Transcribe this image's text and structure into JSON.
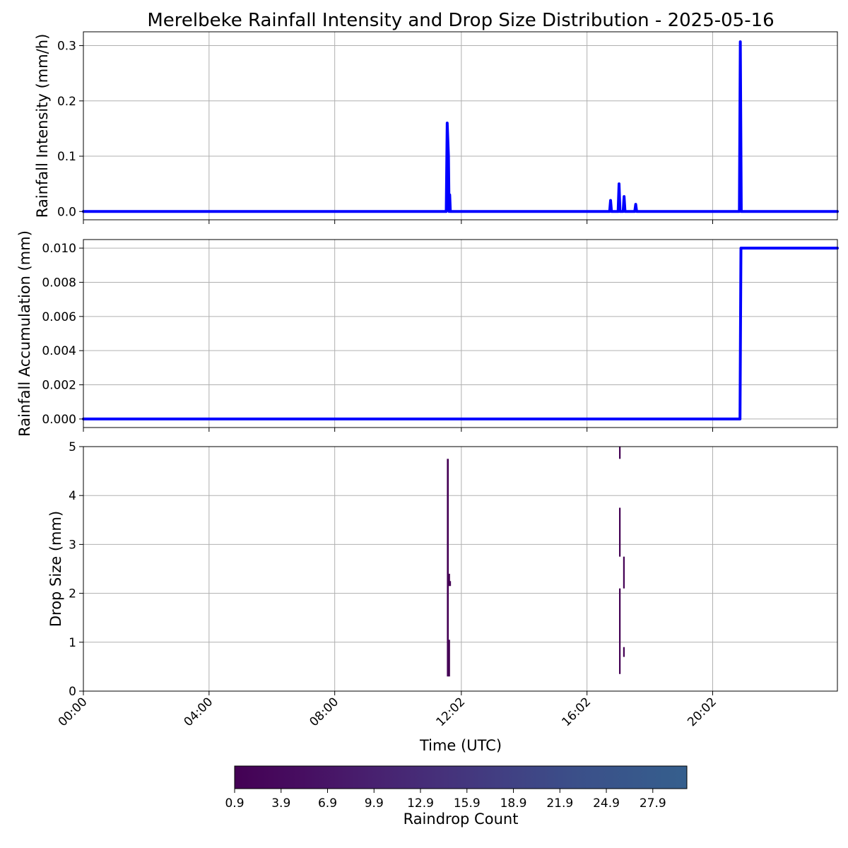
{
  "figure": {
    "title": "Merelbeke Rainfall Intensity and Drop Size Distribution - 2025-05-16",
    "xlabel": "Time (UTC)"
  },
  "colors": {
    "line": "#0000ff",
    "grid": "#b0b0b0",
    "viridis_low": "#440154",
    "viridis_high": "#355f8d"
  },
  "chart_data": [
    {
      "type": "line",
      "name": "intensity",
      "ylabel": "Rainfall Intensity (mm/h)",
      "xlim": [
        0,
        24
      ],
      "ylim": [
        -0.015,
        0.325
      ],
      "yticks": [
        0.0,
        0.1,
        0.2,
        0.3
      ],
      "ytick_labels": [
        "0.0",
        "0.1",
        "0.2",
        "0.3"
      ],
      "grid": true,
      "x": [
        0,
        11.55,
        11.58,
        11.62,
        11.64,
        11.66,
        11.68,
        11.7,
        11.72,
        16.75,
        16.78,
        16.81,
        17.02,
        17.05,
        17.08,
        17.18,
        17.21,
        17.24,
        17.55,
        17.58,
        17.61,
        20.88,
        20.91,
        20.94,
        24
      ],
      "y": [
        0,
        0,
        0.16,
        0.1,
        0,
        0.03,
        0,
        0,
        0,
        0,
        0.02,
        0,
        0,
        0.05,
        0,
        0,
        0.027,
        0,
        0,
        0.013,
        0,
        0,
        0.307,
        0,
        0
      ]
    },
    {
      "type": "line",
      "name": "accumulation",
      "ylabel": "Rainfall Accumulation (mm)",
      "xlim": [
        0,
        24
      ],
      "ylim": [
        -0.0005,
        0.0105
      ],
      "yticks": [
        0.0,
        0.002,
        0.004,
        0.006,
        0.008,
        0.01
      ],
      "ytick_labels": [
        "0.000",
        "0.002",
        "0.004",
        "0.006",
        "0.008",
        "0.010"
      ],
      "grid": true,
      "x": [
        0,
        20.9,
        20.93,
        24
      ],
      "y": [
        0,
        0,
        0.01,
        0.01
      ]
    },
    {
      "type": "heatmap",
      "name": "drop-size",
      "ylabel": "Drop Size (mm)",
      "xlabel": "Time (UTC)",
      "xlim": [
        0,
        24
      ],
      "ylim": [
        0,
        5
      ],
      "yticks": [
        0,
        1,
        2,
        3,
        4,
        5
      ],
      "ytick_labels": [
        "0",
        "1",
        "2",
        "3",
        "4",
        "5"
      ],
      "grid": true,
      "xticks": [
        0,
        4,
        8,
        12.03,
        16.03,
        20.03
      ],
      "xtick_labels": [
        "00:00",
        "04:00",
        "08:00",
        "12:02",
        "16:02",
        "20:02"
      ],
      "cells": [
        {
          "x0": 11.57,
          "x1": 11.63,
          "y0": 0.3,
          "y1": 4.75
        },
        {
          "x0": 11.62,
          "x1": 11.67,
          "y0": 0.3,
          "y1": 1.05
        },
        {
          "x0": 11.62,
          "x1": 11.67,
          "y0": 2.15,
          "y1": 2.4
        },
        {
          "x0": 11.65,
          "x1": 11.7,
          "y0": 2.15,
          "y1": 2.25
        },
        {
          "x0": 17.05,
          "x1": 17.1,
          "y0": 0.35,
          "y1": 2.1
        },
        {
          "x0": 17.05,
          "x1": 17.1,
          "y0": 2.75,
          "y1": 3.75
        },
        {
          "x0": 17.05,
          "x1": 17.1,
          "y0": 4.75,
          "y1": 5.0
        },
        {
          "x0": 17.18,
          "x1": 17.23,
          "y0": 0.7,
          "y1": 0.9
        },
        {
          "x0": 17.18,
          "x1": 17.23,
          "y0": 2.1,
          "y1": 2.75
        }
      ]
    }
  ],
  "colorbar": {
    "label": "Raindrop Count",
    "ticks": [
      "0.9",
      "3.9",
      "6.9",
      "9.9",
      "12.9",
      "15.9",
      "18.9",
      "21.9",
      "24.9",
      "27.9"
    ]
  }
}
